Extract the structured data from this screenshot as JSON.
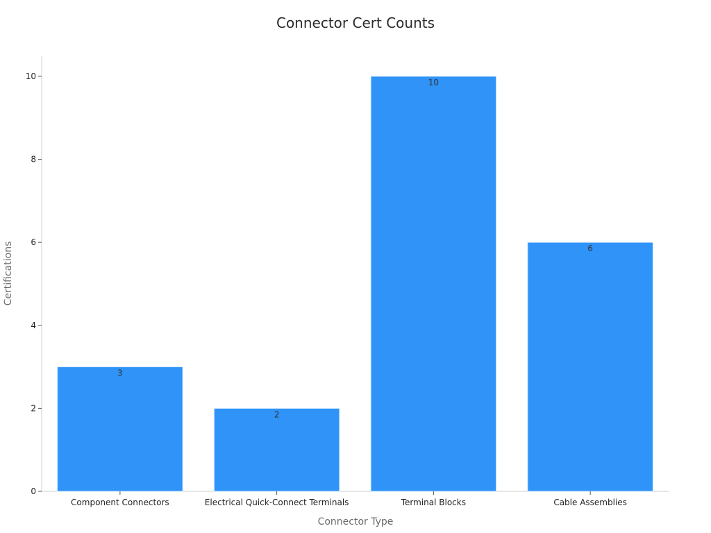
{
  "chart_data": {
    "type": "bar",
    "title": "Connector Cert Counts",
    "xlabel": "Connector Type",
    "ylabel": "Certifications",
    "categories": [
      "Component Connectors",
      "Electrical Quick-Connect Terminals",
      "Terminal Blocks",
      "Cable Assemblies"
    ],
    "values": [
      3,
      2,
      10,
      6
    ],
    "ylim": [
      0,
      10.5
    ],
    "yticks": [
      0,
      2,
      4,
      6,
      8,
      10
    ],
    "grid": false,
    "bar_color": "#2f93f8",
    "data_labels": true
  }
}
